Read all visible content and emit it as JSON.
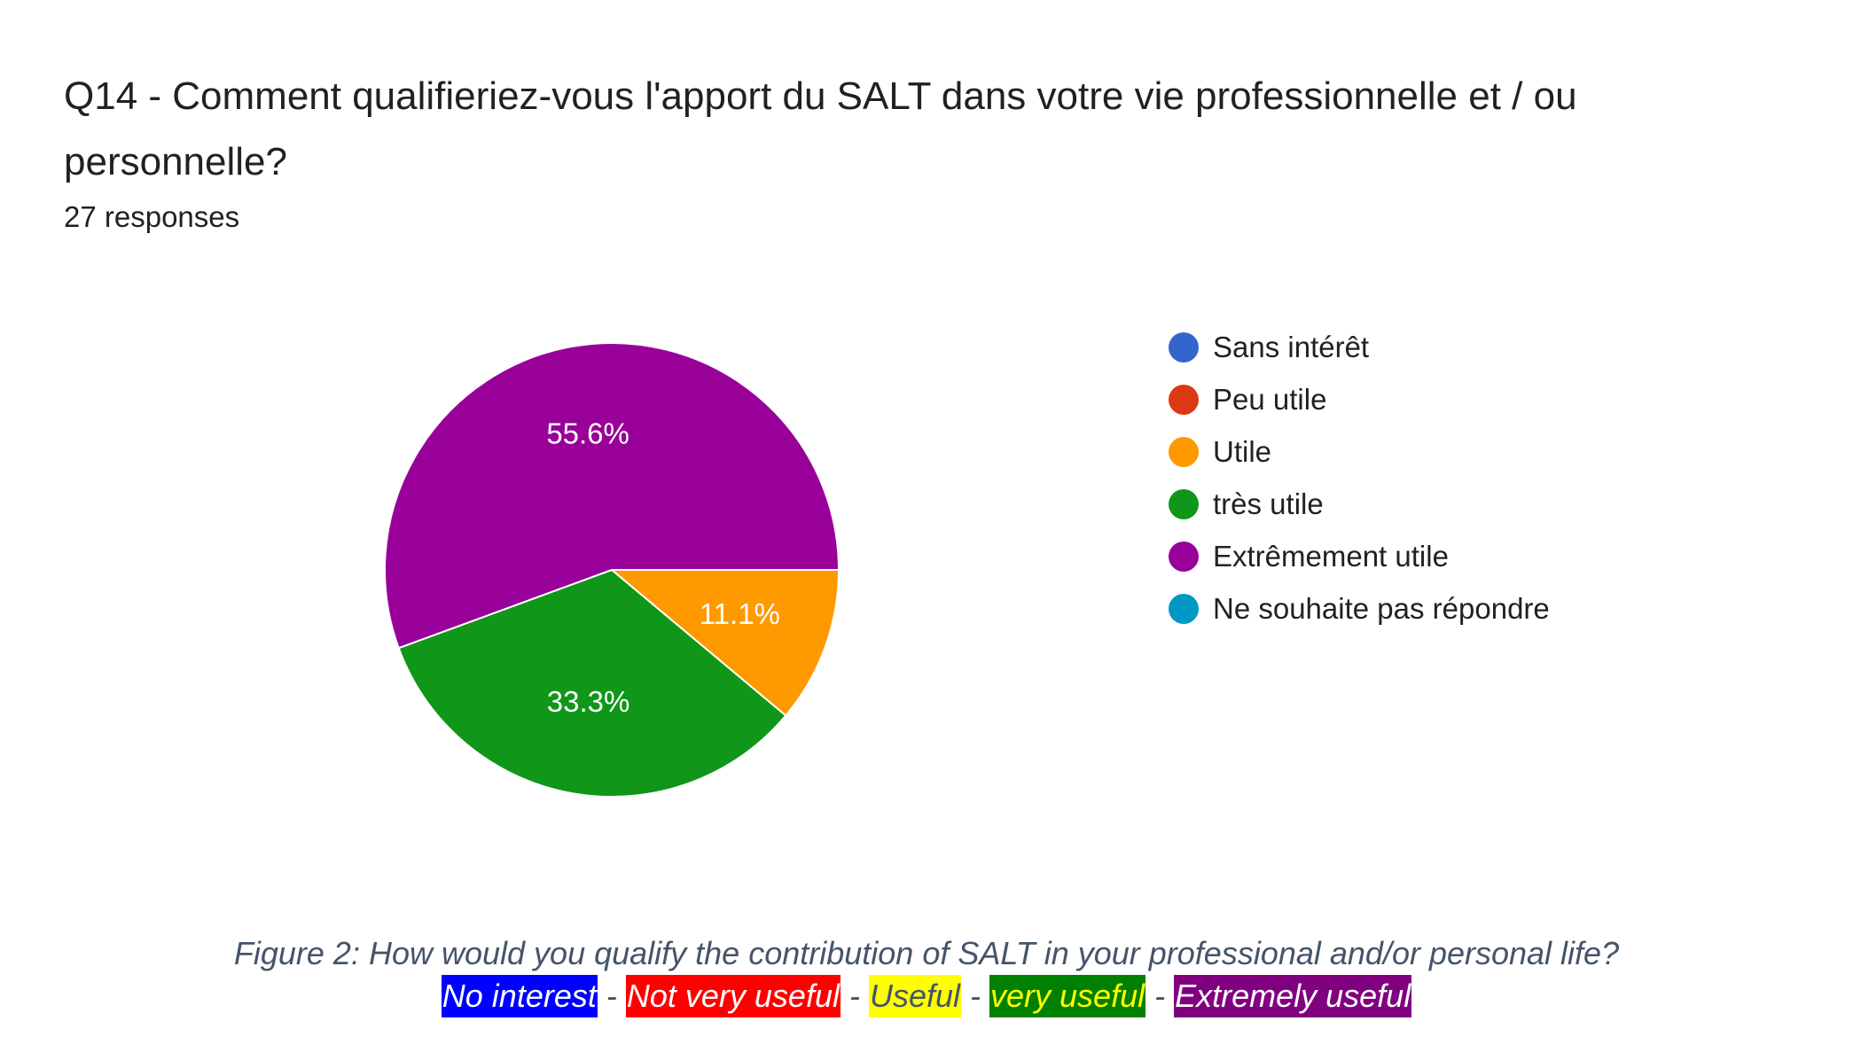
{
  "chart_data": {
    "type": "pie",
    "title": "Q14 - Comment qualifieriez-vous l'apport du SALT dans votre vie professionnelle et / ou personnelle?",
    "subtitle": "27 responses",
    "slices": [
      {
        "label": "Sans intérêt",
        "value": 0.0,
        "display": "",
        "color": "#3366cc"
      },
      {
        "label": "Peu utile",
        "value": 0.0,
        "display": "",
        "color": "#dc3912"
      },
      {
        "label": "Utile",
        "value": 11.1,
        "display": "11.1%",
        "color": "#ff9900"
      },
      {
        "label": "très utile",
        "value": 33.3,
        "display": "33.3%",
        "color": "#109618"
      },
      {
        "label": "Extrêmement utile",
        "value": 55.6,
        "display": "55.6%",
        "color": "#990099"
      },
      {
        "label": "Ne souhaite pas répondre",
        "value": 0.0,
        "display": "",
        "color": "#0099c6"
      }
    ],
    "legend_position": "right"
  },
  "caption": {
    "figure_text": "Figure 2: How would you qualify the contribution of SALT in your professional and/or personal life?",
    "separator": "-",
    "translations": [
      {
        "text": "No interest",
        "bg": "#0000ff",
        "fg": "#ffffff"
      },
      {
        "text": "Not very useful",
        "bg": "#ff0000",
        "fg": "#ffffff"
      },
      {
        "text": "Useful",
        "bg": "#ffff00",
        "fg": "#44546a"
      },
      {
        "text": "very useful",
        "bg": "#008000",
        "fg": "#ffff00"
      },
      {
        "text": "Extremely useful",
        "bg": "#800080",
        "fg": "#ffffff"
      }
    ]
  }
}
